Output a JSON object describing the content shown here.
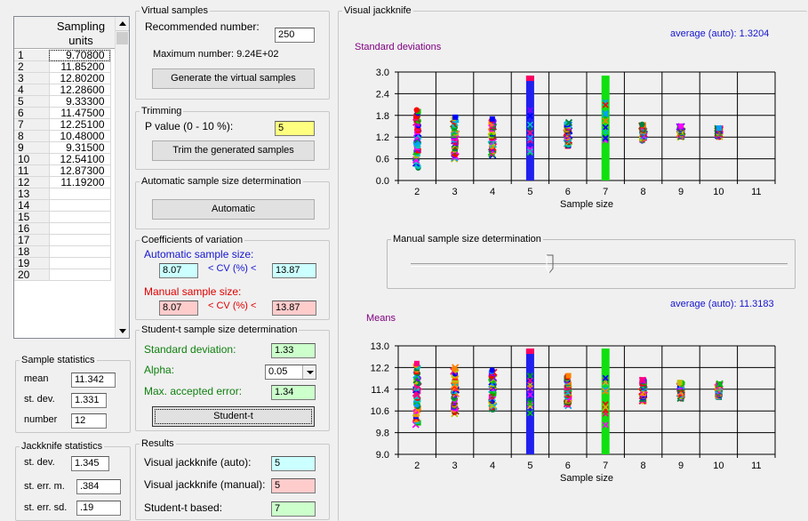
{
  "grid": {
    "header": "Sampling units",
    "rows": [
      {
        "n": "1",
        "v": "9.70800"
      },
      {
        "n": "2",
        "v": "11.85200"
      },
      {
        "n": "3",
        "v": "12.80200"
      },
      {
        "n": "4",
        "v": "12.28600"
      },
      {
        "n": "5",
        "v": "9.33300"
      },
      {
        "n": "6",
        "v": "11.47500"
      },
      {
        "n": "7",
        "v": "12.25100"
      },
      {
        "n": "8",
        "v": "10.48000"
      },
      {
        "n": "9",
        "v": "9.31500"
      },
      {
        "n": "10",
        "v": "12.54100"
      },
      {
        "n": "11",
        "v": "12.87300"
      },
      {
        "n": "12",
        "v": "11.19200"
      },
      {
        "n": "13",
        "v": ""
      },
      {
        "n": "14",
        "v": ""
      },
      {
        "n": "15",
        "v": ""
      },
      {
        "n": "16",
        "v": ""
      },
      {
        "n": "17",
        "v": ""
      },
      {
        "n": "18",
        "v": ""
      },
      {
        "n": "19",
        "v": ""
      },
      {
        "n": "20",
        "v": ""
      }
    ]
  },
  "sample_stats": {
    "title": "Sample statistics",
    "mean_label": "mean",
    "mean": "11.342",
    "sd_label": "st. dev.",
    "sd": "1.331",
    "number_label": "number",
    "number": "12"
  },
  "jack_stats": {
    "title": "Jackknife statistics",
    "sd_label": "st. dev.",
    "sd": "1.345",
    "sem_label": "st. err. m.",
    "sem": ".384",
    "sesd_label": "st. err. sd.",
    "sesd": ".19"
  },
  "virtual": {
    "title": "Virtual samples",
    "rec_label": "Recommended number:",
    "rec": "250",
    "max_label": "Maximum number: 9.24E+02",
    "button": "Generate the virtual samples"
  },
  "trimming": {
    "title": "Trimming",
    "p_label": "P value (0 - 10 %):",
    "p": "5",
    "button": "Trim the generated samples"
  },
  "auto": {
    "title": "Automatic sample size determination",
    "button": "Automatic"
  },
  "cv": {
    "title": "Coefficients of variation",
    "auto_label": "Automatic sample size:",
    "auto_low": "8.07",
    "auto_mid": "< CV (%) <",
    "auto_high": "13.87",
    "manual_label": "Manual sample size:",
    "manual_low": "8.07",
    "manual_mid": "< CV (%) <",
    "manual_high": "13.87"
  },
  "student": {
    "title": "Student-t sample size determination",
    "sd_label": "Standard deviation:",
    "sd": "1.33",
    "alpha_label": "Alpha:",
    "alpha": "0.05",
    "err_label": "Max. accepted error:",
    "err": "1.34",
    "button": "Student-t"
  },
  "results": {
    "title": "Results",
    "auto_label": "Visual jackknife (auto):",
    "auto": "5",
    "manual_label": "Visual jackknife (manual):",
    "manual": "5",
    "student_label": "Student-t based:",
    "student": "7"
  },
  "visual": {
    "title": "Visual jackknife",
    "manual_title": "Manual sample size determination",
    "slider_fraction": 0.37
  },
  "chart_data": [
    {
      "type": "scatter",
      "title": "Standard deviations",
      "average_label": "average (auto): 1.3204",
      "xlabel": "Sample size",
      "x_ticks": [
        "2",
        "3",
        "4",
        "5",
        "6",
        "7",
        "8",
        "9",
        "10",
        "11"
      ],
      "y_ticks": [
        "3.0",
        "2.4",
        "1.8",
        "1.2",
        "0.6",
        "0.0"
      ],
      "ylim": [
        0.0,
        3.0
      ],
      "spread": [
        {
          "x": 2,
          "min": 0.35,
          "max": 1.95
        },
        {
          "x": 3,
          "min": 0.6,
          "max": 1.75
        },
        {
          "x": 4,
          "min": 0.7,
          "max": 1.7
        },
        {
          "x": 5,
          "min": 0.0,
          "max": 2.9
        },
        {
          "x": 6,
          "min": 0.95,
          "max": 1.6
        },
        {
          "x": 7,
          "min": 0.0,
          "max": 2.9
        },
        {
          "x": 8,
          "min": 1.1,
          "max": 1.55
        },
        {
          "x": 9,
          "min": 1.2,
          "max": 1.5
        },
        {
          "x": 10,
          "min": 1.2,
          "max": 1.45
        }
      ],
      "highlight": [
        {
          "x": 5,
          "color": "#2020ee"
        },
        {
          "x": 7,
          "color": "#10e010"
        }
      ]
    },
    {
      "type": "scatter",
      "title": "Means",
      "average_label": "average (auto): 11.3183",
      "xlabel": "Sample size",
      "x_ticks": [
        "2",
        "3",
        "4",
        "5",
        "6",
        "7",
        "8",
        "9",
        "10",
        "11"
      ],
      "y_ticks": [
        "13.0",
        "12.2",
        "11.4",
        "10.6",
        "9.8",
        "9.0"
      ],
      "ylim": [
        9.0,
        13.0
      ],
      "spread": [
        {
          "x": 2,
          "min": 10.1,
          "max": 12.35
        },
        {
          "x": 3,
          "min": 10.5,
          "max": 12.2
        },
        {
          "x": 4,
          "min": 10.65,
          "max": 12.1
        },
        {
          "x": 5,
          "min": 9.0,
          "max": 12.9
        },
        {
          "x": 6,
          "min": 10.8,
          "max": 11.9
        },
        {
          "x": 7,
          "min": 9.0,
          "max": 12.9
        },
        {
          "x": 8,
          "min": 10.95,
          "max": 11.75
        },
        {
          "x": 9,
          "min": 11.05,
          "max": 11.65
        },
        {
          "x": 10,
          "min": 11.1,
          "max": 11.6
        }
      ],
      "highlight": [
        {
          "x": 5,
          "color": "#2020ee"
        },
        {
          "x": 7,
          "color": "#10e010"
        }
      ]
    }
  ],
  "colors": {
    "cyan_field": "#ccffff",
    "pink_field": "#ffcccc",
    "green_field": "#ccffcc",
    "yellow_field": "#ffff80",
    "blue_text": "#1515d0",
    "red_text": "#e00000",
    "green_text": "#108010",
    "purple_text": "#800080"
  }
}
